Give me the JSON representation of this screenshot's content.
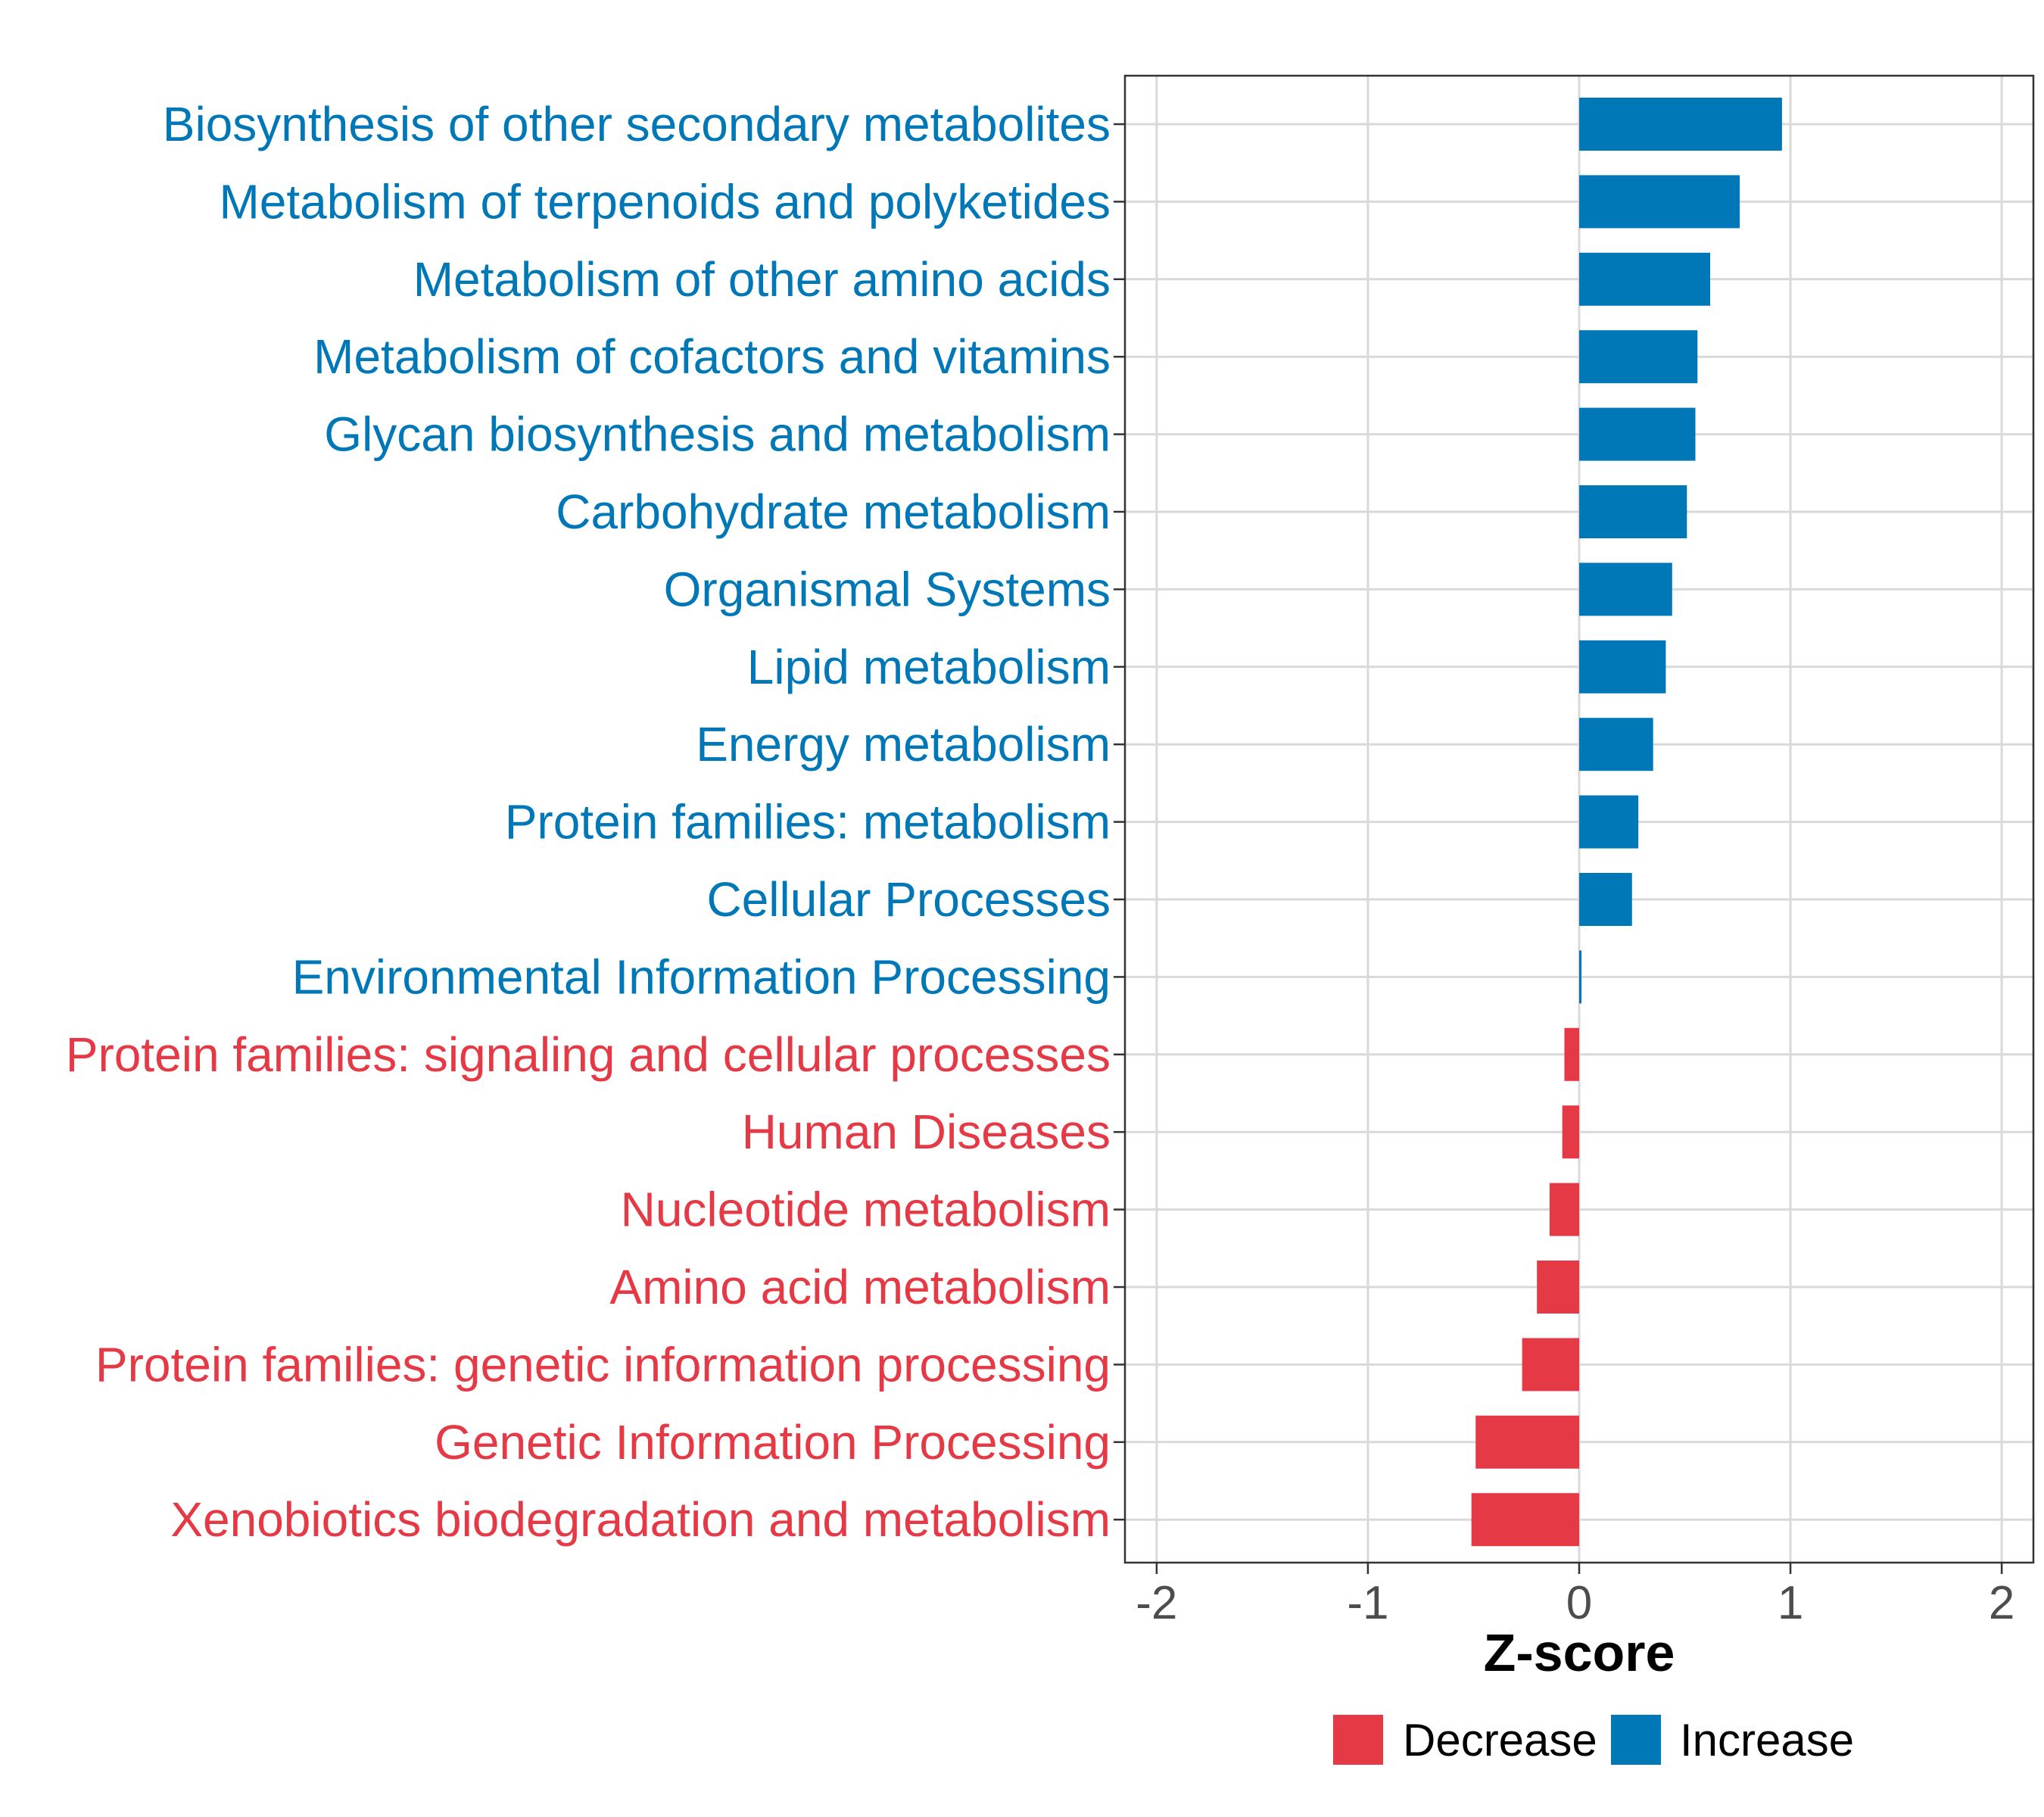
{
  "chart_data": {
    "type": "bar",
    "orientation": "horizontal",
    "title": "",
    "xlabel": "Z-score",
    "ylabel": "",
    "xlim": [
      -2.15,
      2.15
    ],
    "x_ticks": [
      -2,
      -1,
      0,
      1,
      2
    ],
    "x_tick_labels": [
      "-2",
      "-1",
      "0",
      "1",
      "2"
    ],
    "grid": true,
    "legend_position": "bottom",
    "categories": [
      "Biosynthesis of other secondary metabolites",
      "Metabolism of terpenoids and polyketides",
      "Metabolism of other amino acids",
      "Metabolism of cofactors and vitamins",
      "Glycan biosynthesis and metabolism",
      "Carbohydrate metabolism",
      "Organismal Systems",
      "Lipid metabolism",
      "Energy metabolism",
      "Protein families: metabolism",
      "Cellular Processes",
      "Environmental Information Processing",
      "Protein families: signaling and cellular processes",
      "Human Diseases",
      "Nucleotide metabolism",
      "Amino acid metabolism",
      "Protein families: genetic information processing",
      "Genetic Information Processing",
      "Xenobiotics biodegradation and metabolism"
    ],
    "values": [
      0.96,
      0.76,
      0.62,
      0.56,
      0.55,
      0.51,
      0.44,
      0.41,
      0.35,
      0.28,
      0.25,
      0.01,
      -0.07,
      -0.08,
      -0.14,
      -0.2,
      -0.27,
      -0.49,
      -0.51
    ],
    "groups": [
      "Increase",
      "Increase",
      "Increase",
      "Increase",
      "Increase",
      "Increase",
      "Increase",
      "Increase",
      "Increase",
      "Increase",
      "Increase",
      "Increase",
      "Decrease",
      "Decrease",
      "Decrease",
      "Decrease",
      "Decrease",
      "Decrease",
      "Decrease"
    ],
    "legend": [
      {
        "name": "Decrease",
        "color": "#E63946"
      },
      {
        "name": "Increase",
        "color": "#0077B6"
      }
    ]
  }
}
